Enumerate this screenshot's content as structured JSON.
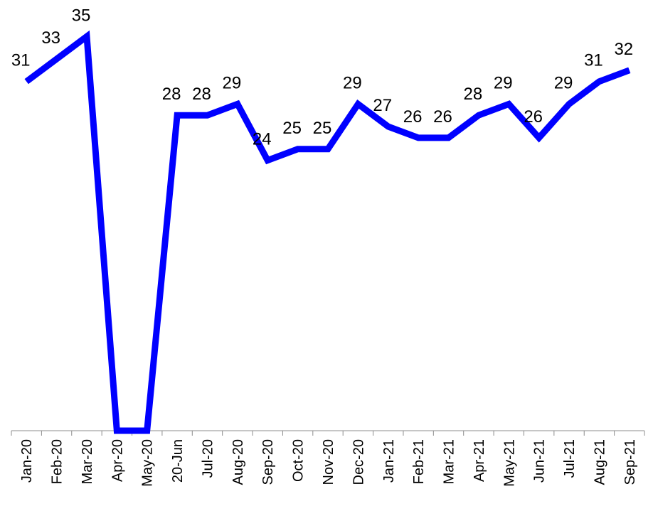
{
  "chart_data": {
    "type": "line",
    "categories": [
      "Jan-20",
      "Feb-20",
      "Mar-20",
      "Apr-20",
      "May-20",
      "20-Jun",
      "Jul-20",
      "Aug-20",
      "Sep-20",
      "Oct-20",
      "Nov-20",
      "Dec-20",
      "Jan-21",
      "Feb-21",
      "Mar-21",
      "Apr-21",
      "May-21",
      "Jun-21",
      "Jul-21",
      "Aug-21",
      "Sep-21"
    ],
    "series": [
      {
        "values": [
          31,
          33,
          35,
          0,
          0,
          28,
          28,
          29,
          24,
          25,
          25,
          29,
          27,
          26,
          26,
          28,
          29,
          26,
          29,
          31,
          32
        ],
        "labels": [
          "31",
          "33",
          "35",
          "",
          "",
          "28",
          "28",
          "29",
          "24",
          "25",
          "25",
          "29",
          "27",
          "26",
          "26",
          "28",
          "29",
          "26",
          "29",
          "31",
          "32"
        ],
        "color": "#0000ff"
      }
    ],
    "ylim": [
      0,
      38
    ],
    "grid": false,
    "legend": "none"
  }
}
